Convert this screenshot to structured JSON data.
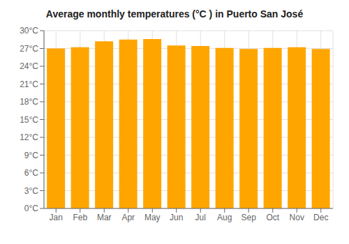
{
  "chart_data": {
    "type": "bar",
    "title": "Average monthly temperatures (°C ) in Puerto San José",
    "categories": [
      "Jan",
      "Feb",
      "Mar",
      "Apr",
      "May",
      "Jun",
      "Jul",
      "Aug",
      "Sep",
      "Oct",
      "Nov",
      "Dec"
    ],
    "values": [
      27.0,
      27.2,
      28.2,
      28.5,
      28.6,
      27.5,
      27.4,
      27.1,
      26.9,
      27.1,
      27.2,
      26.9
    ],
    "color": "#FFA500",
    "ylim": [
      0,
      30
    ],
    "yticks": [
      {
        "value": 0,
        "label": "0°C"
      },
      {
        "value": 3,
        "label": "3°C"
      },
      {
        "value": 6,
        "label": "6°C"
      },
      {
        "value": 9,
        "label": "9°C"
      },
      {
        "value": 12,
        "label": "12°C"
      },
      {
        "value": 15,
        "label": "15°C"
      },
      {
        "value": 18,
        "label": "18°C"
      },
      {
        "value": 21,
        "label": "21°C"
      },
      {
        "value": 24,
        "label": "24°C"
      },
      {
        "value": 27,
        "label": "27°C"
      },
      {
        "value": 30,
        "label": "30°C"
      }
    ],
    "grid": true
  }
}
